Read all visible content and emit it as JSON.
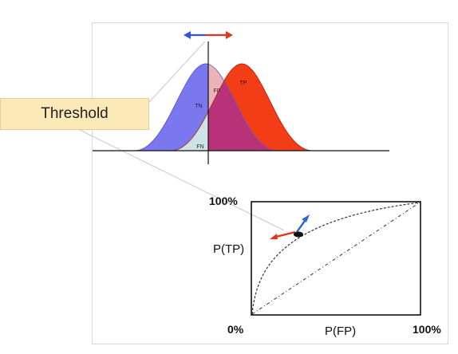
{
  "threshold_label": "Threshold",
  "curve_labels": {
    "tn": "TN",
    "fp": "FP",
    "tp": "TP",
    "fn": "FN"
  },
  "roc": {
    "y_top": "100%",
    "y_axis": "P(TP)",
    "origin": "0%",
    "x_axis": "P(FP)",
    "x_right": "100%"
  },
  "colors": {
    "negative_distribution": "#7b78ef",
    "positive_distribution": "#f23d17",
    "overlap_fp": "#e8b4b8",
    "overlap_fn": "#cfe3e6",
    "overlap_center": "#b8327a",
    "arrow_left": "#3355dd",
    "arrow_right": "#e23318",
    "threshold_box": "#fbe9b7"
  }
}
